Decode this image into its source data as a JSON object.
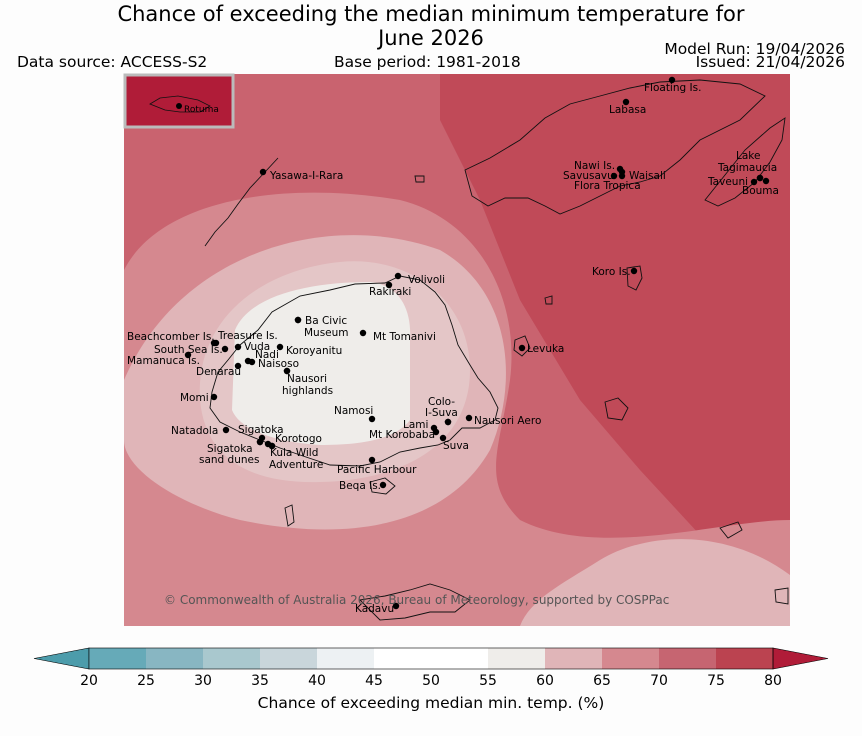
{
  "title": {
    "line1": "Chance of exceeding the median minimum temperature for",
    "line2": "June 2026"
  },
  "header": {
    "data_source": "Data source: ACCESS-S2",
    "base_period": "Base period: 1981-2018",
    "model_run": "Model Run: 19/04/2026",
    "issued": "Issued: 21/04/2026"
  },
  "inset": {
    "label": "Rotuma"
  },
  "places": [
    {
      "name": "Floating Is."
    },
    {
      "name": "Labasa"
    },
    {
      "name": "Yasawa-I-Rara"
    },
    {
      "name": "Nawi Is."
    },
    {
      "name": "Savusavu"
    },
    {
      "name": "Waisali"
    },
    {
      "name": "Flora Tropica"
    },
    {
      "name": "Lake"
    },
    {
      "name": "Tagimaucia"
    },
    {
      "name": "Taveuni"
    },
    {
      "name": "Bouma"
    },
    {
      "name": "Koro Is."
    },
    {
      "name": "Volivoli"
    },
    {
      "name": "Rakiraki"
    },
    {
      "name": "Ba Civic"
    },
    {
      "name": "Museum"
    },
    {
      "name": "Mt Tomanivi"
    },
    {
      "name": "Beachcomber Is."
    },
    {
      "name": "Treasure Is."
    },
    {
      "name": "South Sea Is."
    },
    {
      "name": "Vuda"
    },
    {
      "name": "Nadi"
    },
    {
      "name": "Koroyanitu"
    },
    {
      "name": "Mamanuca Is."
    },
    {
      "name": "Naisoso"
    },
    {
      "name": "Denarau"
    },
    {
      "name": "Nausori"
    },
    {
      "name": "highlands"
    },
    {
      "name": "Levuka"
    },
    {
      "name": "Momi"
    },
    {
      "name": "Colo-"
    },
    {
      "name": "I-Suva"
    },
    {
      "name": "Namosi"
    },
    {
      "name": "Nausori Aero"
    },
    {
      "name": "Natadola"
    },
    {
      "name": "Sigatoka"
    },
    {
      "name": "Korotogo"
    },
    {
      "name": "Lami"
    },
    {
      "name": "Mt Korobaba"
    },
    {
      "name": "Suva"
    },
    {
      "name": "Sigatoka"
    },
    {
      "name": "sand dunes"
    },
    {
      "name": "Kula Wild"
    },
    {
      "name": "Adventure"
    },
    {
      "name": "Pacific Harbour"
    },
    {
      "name": "Beqa Is."
    },
    {
      "name": "Kadavu"
    }
  ],
  "copyright": "© Commonwealth of Australia 2026, Bureau of Meteorology, supported by COSPPac",
  "colorbar": {
    "ticks": [
      "20",
      "25",
      "30",
      "35",
      "40",
      "45",
      "50",
      "55",
      "60",
      "65",
      "70",
      "75",
      "80"
    ],
    "colors": [
      "#66aab8",
      "#88b6c2",
      "#a9c8ce",
      "#c9d6db",
      "#edf1f3",
      "#ffffff",
      "#ffffff",
      "#efedea",
      "#e0b5b8",
      "#d5888f",
      "#c66571",
      "#bb4350"
    ],
    "under_color": "#4c9cab",
    "over_color": "#b01c38",
    "label": "Chance of exceeding median min. temp. (%)"
  }
}
